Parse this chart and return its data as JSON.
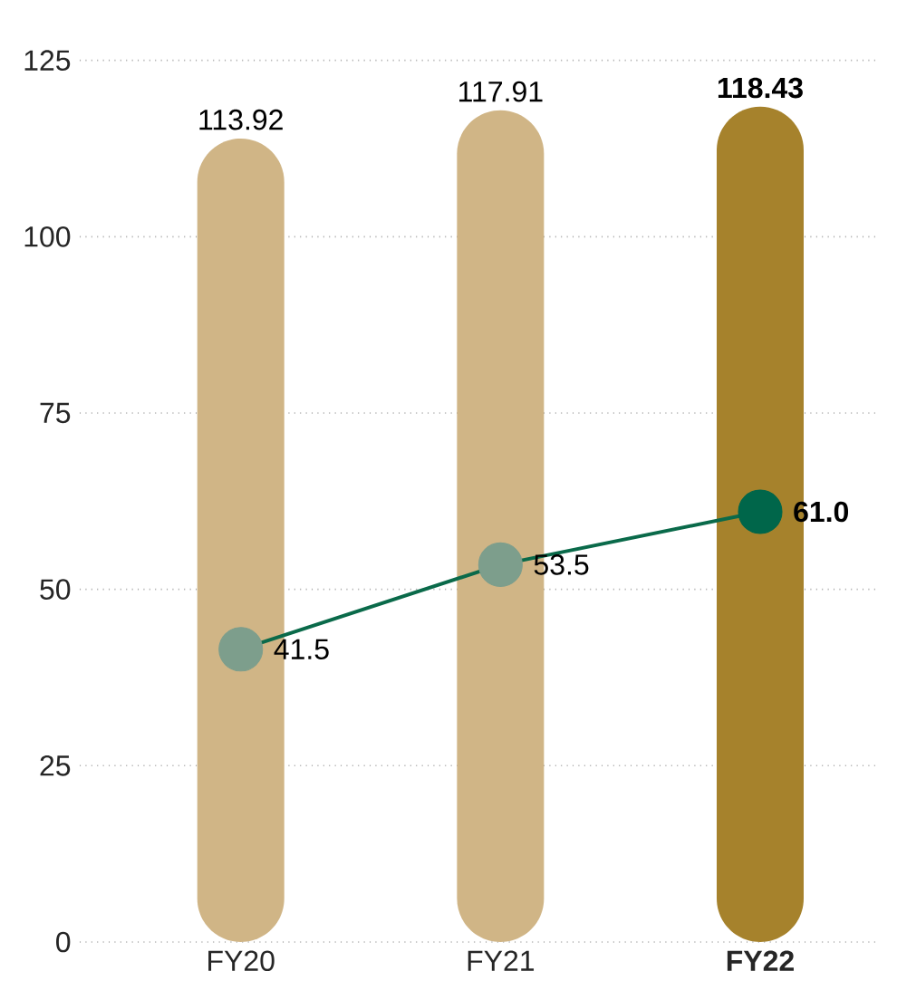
{
  "chart_data": {
    "type": "bar",
    "categories": [
      "FY20",
      "FY21",
      "FY22"
    ],
    "series": [
      {
        "values": [
          113.92,
          117.91,
          118.43
        ],
        "colors": [
          "#d0b586",
          "#d0b586",
          "#a6822c"
        ]
      },
      {
        "type": "line",
        "values": [
          41.5,
          53.5,
          61.0
        ],
        "value_labels": [
          "41.5",
          "53.5",
          "61.0"
        ],
        "color": "#0a6a4a",
        "colors": [
          "#7d9e8c",
          "#7d9e8c",
          "#00664a"
        ],
        "marker": "circle"
      }
    ],
    "ylim": [
      0,
      125
    ],
    "yticks": [
      0,
      25,
      50,
      75,
      100,
      125
    ],
    "grid": "y",
    "data_labels": true
  }
}
